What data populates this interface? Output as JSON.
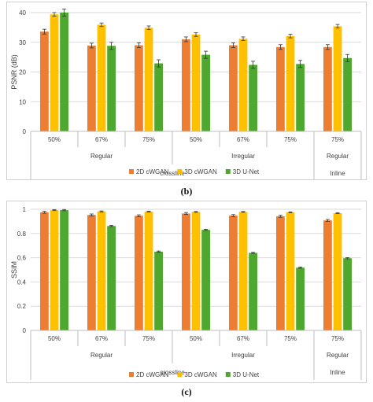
{
  "caption_b": "(b)",
  "caption_c": "(c)",
  "colors": {
    "2D cWGAN": "#ed7d31",
    "3D cWGAN": "#ffc000",
    "3D U-Net": "#4ea72e"
  },
  "chart_data": [
    {
      "type": "bar",
      "ylabel": "PSNR (dB)",
      "ylim": [
        0,
        40
      ],
      "yticks": [
        0,
        10,
        20,
        30,
        40
      ],
      "grid": true,
      "legend": "bottom",
      "categories": [
        "50%",
        "67%",
        "75%",
        "50%",
        "67%",
        "75%",
        "75%"
      ],
      "groups": [
        {
          "label": "Regular",
          "start": 0,
          "end": 2
        },
        {
          "label": "Irregular",
          "start": 3,
          "end": 5
        },
        {
          "label": "Regular",
          "start": 6,
          "end": 6
        }
      ],
      "supergroups": [
        {
          "label": "crossline",
          "start": 0,
          "end": 5
        },
        {
          "label": "Inline",
          "start": 6,
          "end": 6
        }
      ],
      "series": [
        {
          "name": "2D cWGAN",
          "values": [
            33.6,
            28.9,
            29.0,
            31.0,
            29.0,
            28.4,
            28.4
          ],
          "errors": [
            0.8,
            0.8,
            0.8,
            0.8,
            0.8,
            0.8,
            0.8
          ]
        },
        {
          "name": "3D cWGAN",
          "values": [
            39.4,
            35.9,
            34.9,
            32.6,
            31.2,
            32.1,
            35.4
          ],
          "errors": [
            0.6,
            0.6,
            0.6,
            0.6,
            0.6,
            0.6,
            0.6
          ]
        },
        {
          "name": "3D U-Net",
          "values": [
            40.0,
            28.8,
            22.9,
            25.8,
            22.4,
            22.7,
            24.7
          ],
          "errors": [
            1.2,
            1.2,
            1.2,
            1.2,
            1.2,
            1.2,
            1.2
          ]
        }
      ]
    },
    {
      "type": "bar",
      "ylabel": "SSIM",
      "ylim": [
        0,
        1
      ],
      "yticks": [
        0,
        0.2,
        0.4,
        0.6,
        0.8,
        1
      ],
      "grid": true,
      "legend": "bottom",
      "categories": [
        "50%",
        "67%",
        "75%",
        "50%",
        "67%",
        "75%",
        "75%"
      ],
      "groups": [
        {
          "label": "Regular",
          "start": 0,
          "end": 2
        },
        {
          "label": "Irregular",
          "start": 3,
          "end": 5
        },
        {
          "label": "Regular",
          "start": 6,
          "end": 6
        }
      ],
      "supergroups": [
        {
          "label": "crossline",
          "start": 0,
          "end": 5
        },
        {
          "label": "Inline",
          "start": 6,
          "end": 6
        }
      ],
      "series": [
        {
          "name": "2D cWGAN",
          "values": [
            0.975,
            0.953,
            0.946,
            0.965,
            0.948,
            0.942,
            0.908
          ],
          "errors": [
            0.008,
            0.008,
            0.008,
            0.008,
            0.008,
            0.008,
            0.008
          ]
        },
        {
          "name": "3D cWGAN",
          "values": [
            0.993,
            0.982,
            0.981,
            0.978,
            0.978,
            0.975,
            0.968
          ],
          "errors": [
            0.004,
            0.004,
            0.004,
            0.004,
            0.004,
            0.004,
            0.004
          ]
        },
        {
          "name": "3D U-Net",
          "values": [
            0.993,
            0.862,
            0.65,
            0.83,
            0.64,
            0.518,
            0.596
          ],
          "errors": [
            0.005,
            0.005,
            0.005,
            0.005,
            0.005,
            0.005,
            0.005
          ]
        }
      ]
    }
  ]
}
